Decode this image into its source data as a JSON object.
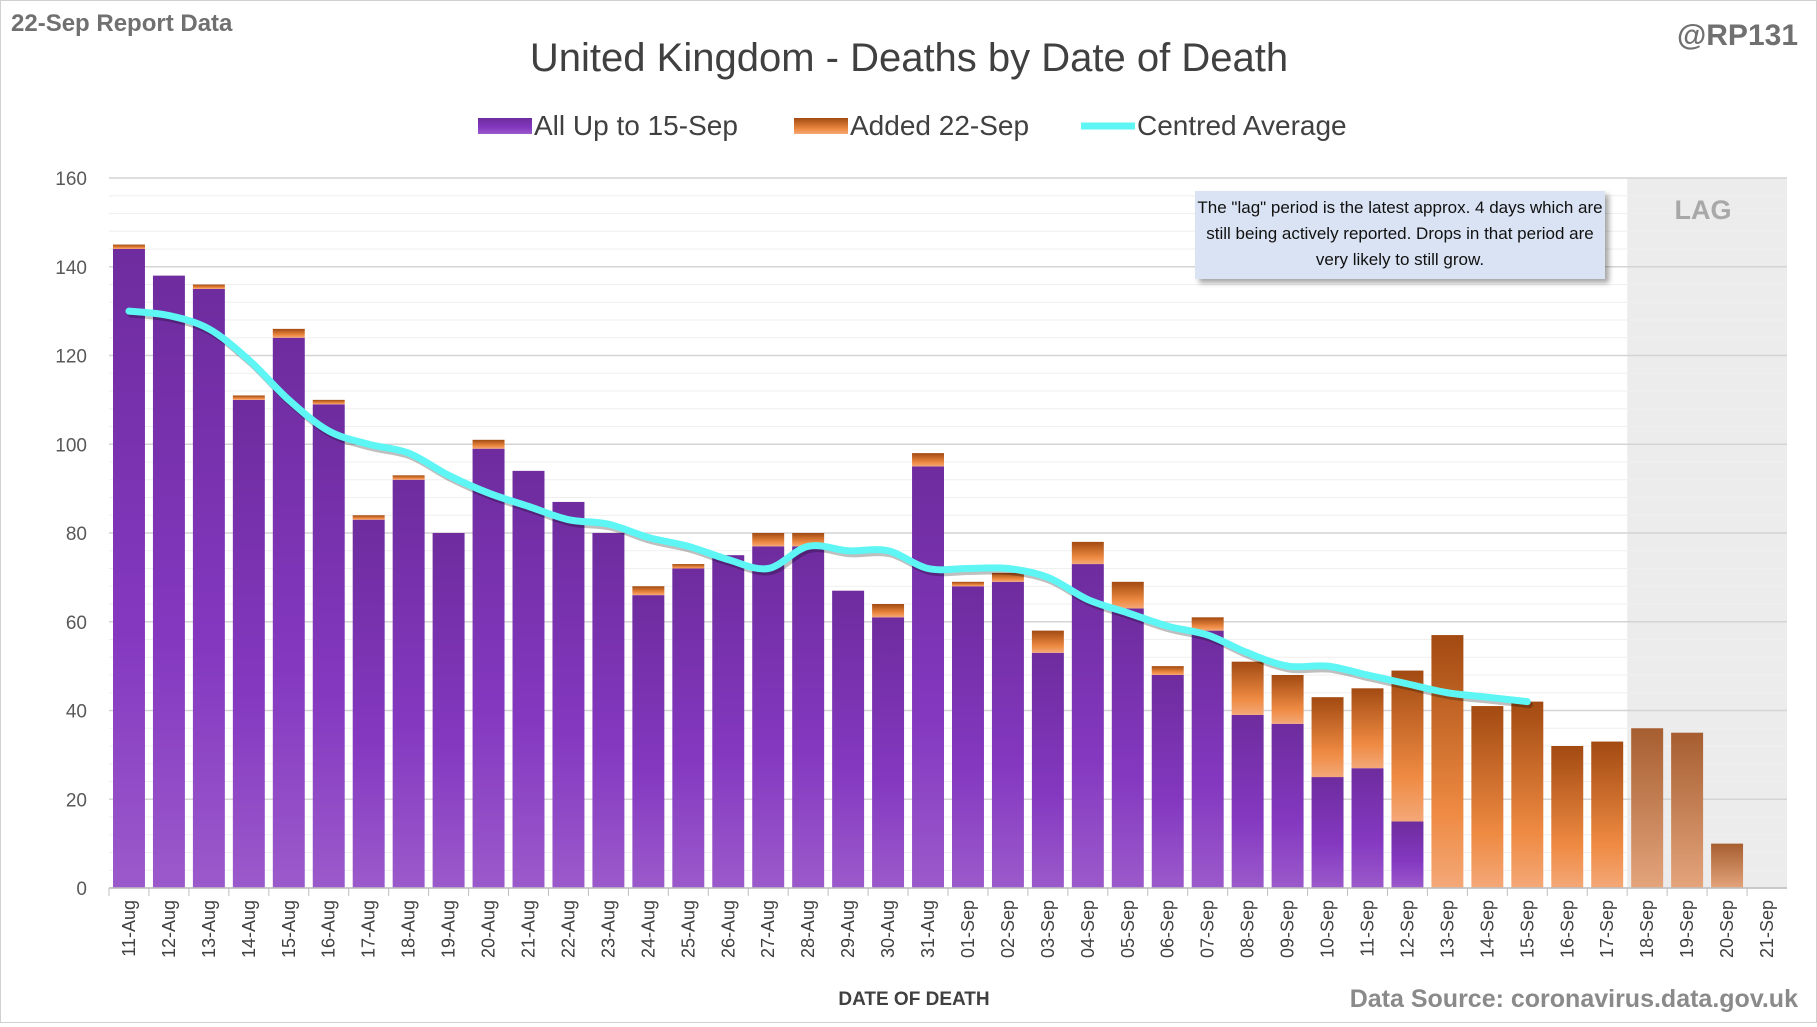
{
  "header": {
    "report_label": "22-Sep Report Data",
    "handle": "@RP131",
    "source": "Data Source: coronavirus.data.gov.uk"
  },
  "annotation": {
    "note": "The \"lag\" period is the latest approx. 4 days which are still being actively reported. Drops in that period are very likely to still grow.",
    "lag_label": "LAG"
  },
  "chart_data": {
    "type": "bar",
    "stacked": true,
    "title": "United Kingdom - Deaths by Date of Death",
    "xlabel": "DATE OF DEATH",
    "ylabel": "",
    "ylim": [
      0,
      160
    ],
    "yticks": [
      0,
      20,
      40,
      60,
      80,
      100,
      120,
      140,
      160
    ],
    "grid": true,
    "legend_position": "top",
    "lag_categories": [
      "18-Sep",
      "19-Sep",
      "20-Sep",
      "21-Sep"
    ],
    "categories": [
      "11-Aug",
      "12-Aug",
      "13-Aug",
      "14-Aug",
      "15-Aug",
      "16-Aug",
      "17-Aug",
      "18-Aug",
      "19-Aug",
      "20-Aug",
      "21-Aug",
      "22-Aug",
      "23-Aug",
      "24-Aug",
      "25-Aug",
      "26-Aug",
      "27-Aug",
      "28-Aug",
      "29-Aug",
      "30-Aug",
      "31-Aug",
      "01-Sep",
      "02-Sep",
      "03-Sep",
      "04-Sep",
      "05-Sep",
      "06-Sep",
      "07-Sep",
      "08-Sep",
      "09-Sep",
      "10-Sep",
      "11-Sep",
      "12-Sep",
      "13-Sep",
      "14-Sep",
      "15-Sep",
      "16-Sep",
      "17-Sep",
      "18-Sep",
      "19-Sep",
      "20-Sep",
      "21-Sep"
    ],
    "series": [
      {
        "name": "All Up to 15-Sep",
        "kind": "bar",
        "color": "#7b2fb5",
        "values": [
          144,
          138,
          135,
          110,
          124,
          109,
          83,
          92,
          80,
          99,
          94,
          87,
          80,
          66,
          72,
          75,
          77,
          77,
          67,
          61,
          95,
          68,
          69,
          53,
          73,
          63,
          48,
          58,
          39,
          37,
          25,
          27,
          15,
          0,
          0,
          0,
          0,
          0,
          0,
          0,
          0,
          0
        ]
      },
      {
        "name": "Added 22-Sep",
        "kind": "bar",
        "color": "#e07a30",
        "values": [
          1,
          0,
          1,
          1,
          2,
          1,
          1,
          1,
          0,
          2,
          0,
          0,
          0,
          2,
          1,
          0,
          3,
          3,
          0,
          3,
          3,
          1,
          2,
          5,
          5,
          6,
          2,
          3,
          12,
          11,
          18,
          18,
          34,
          57,
          41,
          42,
          32,
          33,
          36,
          35,
          10,
          0
        ]
      },
      {
        "name": "Centred Average",
        "kind": "line",
        "color": "#5ef5f5",
        "values": [
          130,
          129,
          126,
          119,
          110,
          103,
          100,
          98,
          93,
          89,
          86,
          83,
          82,
          79,
          77,
          74,
          72,
          77,
          76,
          76,
          72,
          72,
          72,
          70,
          65,
          62,
          59,
          57,
          53,
          50,
          50,
          48,
          46,
          44,
          43,
          42,
          null,
          null,
          null,
          null,
          null,
          null
        ]
      }
    ]
  }
}
